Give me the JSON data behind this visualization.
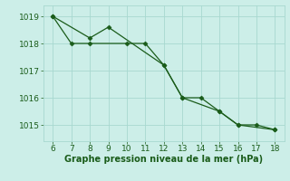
{
  "line1_x": [
    6,
    7,
    8,
    10,
    11,
    12,
    13,
    14,
    15,
    16,
    17,
    18
  ],
  "line1_y": [
    1019.0,
    1018.0,
    1018.0,
    1018.0,
    1018.0,
    1017.2,
    1016.0,
    1016.0,
    1015.5,
    1015.0,
    1015.0,
    1014.82
  ],
  "line2_x": [
    6,
    8,
    9,
    12,
    13,
    15,
    16,
    18
  ],
  "line2_y": [
    1019.0,
    1018.2,
    1018.6,
    1017.2,
    1016.0,
    1015.5,
    1015.0,
    1014.82
  ],
  "line_color": "#1a5c1a",
  "bg_color": "#cceee8",
  "grid_color": "#a8d8d0",
  "xlabel": "Graphe pression niveau de la mer (hPa)",
  "xlim": [
    5.5,
    18.5
  ],
  "ylim": [
    1014.4,
    1019.4
  ],
  "xticks": [
    6,
    7,
    8,
    9,
    10,
    11,
    12,
    13,
    14,
    15,
    16,
    17,
    18
  ],
  "yticks": [
    1015,
    1016,
    1017,
    1018,
    1019
  ],
  "xlabel_color": "#1a5c1a",
  "tick_color": "#1a5c1a",
  "tick_fontsize": 6.5,
  "xlabel_fontsize": 7.0
}
